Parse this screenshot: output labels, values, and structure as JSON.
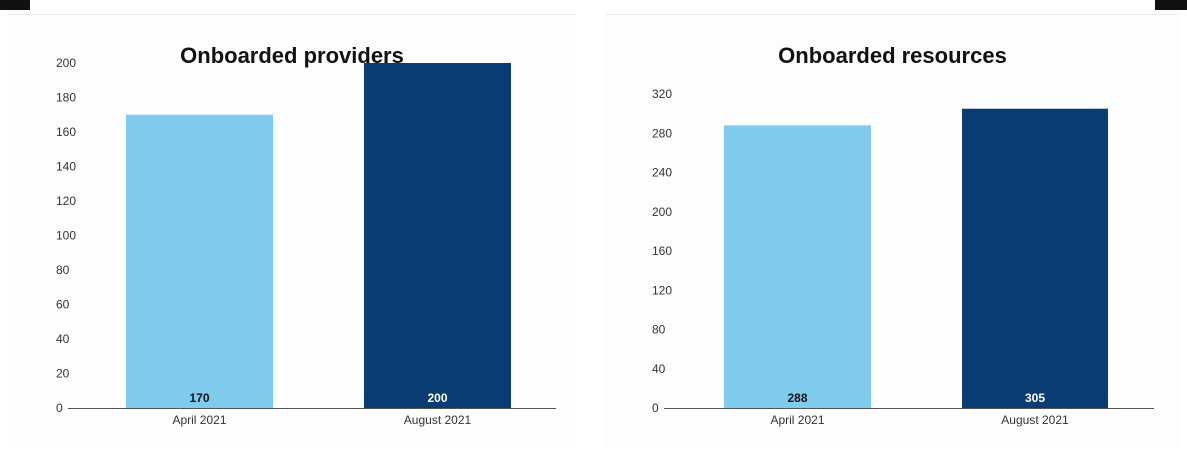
{
  "colors": {
    "april": "#7ecbee",
    "august": "#083c72",
    "axis": "#555555"
  },
  "chart_data": [
    {
      "type": "bar",
      "title": "Onboarded providers",
      "categories": [
        "April 2021",
        "August 2021"
      ],
      "values": [
        170,
        200
      ],
      "data_labels": [
        "170",
        "200"
      ],
      "ylim": [
        0,
        200
      ],
      "yticks": [
        0,
        20,
        40,
        60,
        80,
        100,
        120,
        140,
        160,
        180,
        200
      ],
      "xlabel": "",
      "ylabel": "",
      "grid": false
    },
    {
      "type": "bar",
      "title": "Onboarded resources",
      "categories": [
        "April 2021",
        "August 2021"
      ],
      "values": [
        288,
        305
      ],
      "data_labels": [
        "288",
        "305"
      ],
      "ylim": [
        0,
        320
      ],
      "yticks": [
        0,
        40,
        80,
        120,
        160,
        200,
        240,
        280,
        320
      ],
      "xlabel": "",
      "ylabel": "",
      "grid": false
    }
  ]
}
